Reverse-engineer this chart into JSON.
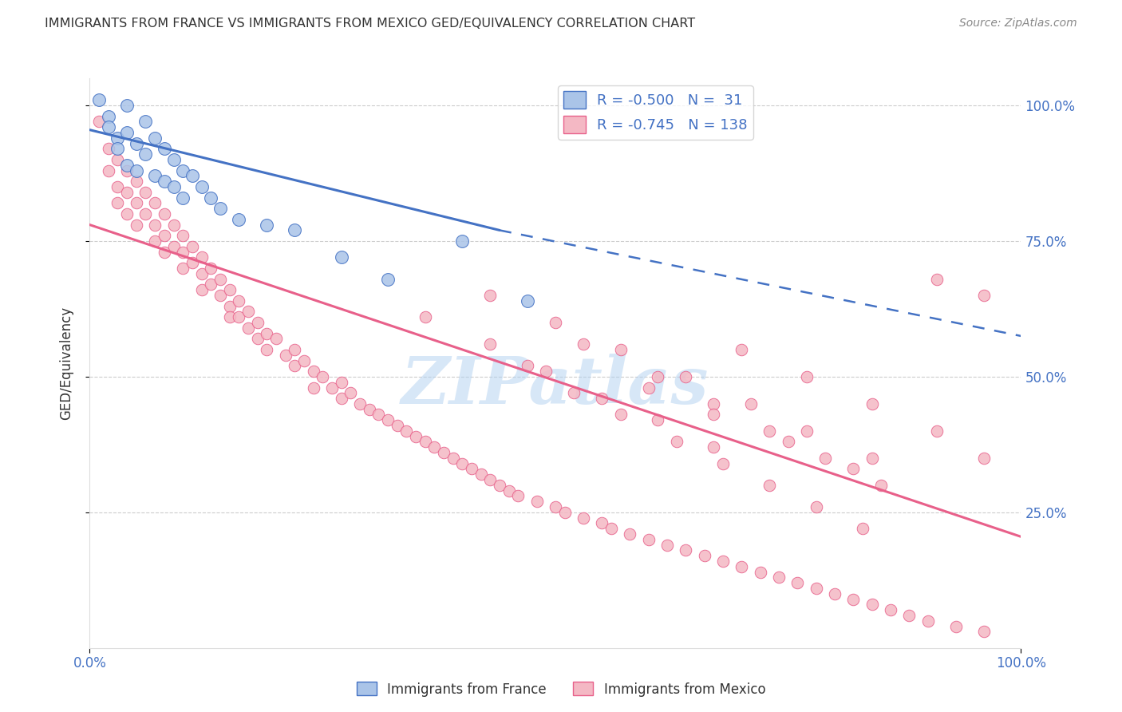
{
  "title": "IMMIGRANTS FROM FRANCE VS IMMIGRANTS FROM MEXICO GED/EQUIVALENCY CORRELATION CHART",
  "source": "Source: ZipAtlas.com",
  "ylabel": "GED/Equivalency",
  "xlim": [
    0.0,
    1.0
  ],
  "ylim": [
    0.0,
    1.05
  ],
  "ytick_positions": [
    0.25,
    0.5,
    0.75,
    1.0
  ],
  "ytick_labels": [
    "25.0%",
    "50.0%",
    "75.0%",
    "100.0%"
  ],
  "xtick_positions": [
    0.0,
    1.0
  ],
  "xtick_labels": [
    "0.0%",
    "100.0%"
  ],
  "france_R": -0.5,
  "france_N": 31,
  "mexico_R": -0.745,
  "mexico_N": 138,
  "legend_france_color": "#aac4e8",
  "legend_mexico_color": "#f4b8c4",
  "france_line_color": "#4472c4",
  "mexico_line_color": "#e8608a",
  "france_scatter_facecolor": "#aac4e8",
  "france_scatter_edgecolor": "#4472c4",
  "mexico_scatter_facecolor": "#f4b8c4",
  "mexico_scatter_edgecolor": "#e8608a",
  "watermark_text": "ZIPatlas",
  "watermark_color": "#b0d0f0",
  "background_color": "#ffffff",
  "grid_color": "#cccccc",
  "title_color": "#333333",
  "axis_label_color": "#4472c4",
  "france_line_x0": 0.0,
  "france_line_y0": 0.955,
  "france_line_solid_x1": 0.44,
  "france_line_solid_y1": 0.77,
  "france_line_dash_x2": 1.0,
  "france_line_dash_y2": 0.575,
  "mexico_line_x0": 0.0,
  "mexico_line_y0": 0.78,
  "mexico_line_x1": 1.0,
  "mexico_line_y1": 0.205,
  "france_x": [
    0.01,
    0.02,
    0.02,
    0.03,
    0.03,
    0.04,
    0.04,
    0.04,
    0.05,
    0.05,
    0.06,
    0.06,
    0.07,
    0.07,
    0.08,
    0.08,
    0.09,
    0.09,
    0.1,
    0.1,
    0.11,
    0.12,
    0.13,
    0.14,
    0.16,
    0.19,
    0.22,
    0.27,
    0.32,
    0.4,
    0.47
  ],
  "france_y": [
    1.01,
    0.98,
    0.96,
    0.94,
    0.92,
    1.0,
    0.95,
    0.89,
    0.93,
    0.88,
    0.97,
    0.91,
    0.94,
    0.87,
    0.92,
    0.86,
    0.9,
    0.85,
    0.88,
    0.83,
    0.87,
    0.85,
    0.83,
    0.81,
    0.79,
    0.78,
    0.77,
    0.72,
    0.68,
    0.75,
    0.64
  ],
  "mexico_x": [
    0.01,
    0.02,
    0.02,
    0.03,
    0.03,
    0.03,
    0.04,
    0.04,
    0.04,
    0.05,
    0.05,
    0.05,
    0.06,
    0.06,
    0.07,
    0.07,
    0.07,
    0.08,
    0.08,
    0.08,
    0.09,
    0.09,
    0.1,
    0.1,
    0.1,
    0.11,
    0.11,
    0.12,
    0.12,
    0.12,
    0.13,
    0.13,
    0.14,
    0.14,
    0.15,
    0.15,
    0.15,
    0.16,
    0.16,
    0.17,
    0.17,
    0.18,
    0.18,
    0.19,
    0.19,
    0.2,
    0.21,
    0.22,
    0.22,
    0.23,
    0.24,
    0.24,
    0.25,
    0.26,
    0.27,
    0.27,
    0.28,
    0.29,
    0.3,
    0.31,
    0.32,
    0.33,
    0.34,
    0.35,
    0.36,
    0.37,
    0.38,
    0.39,
    0.4,
    0.41,
    0.42,
    0.43,
    0.44,
    0.45,
    0.46,
    0.48,
    0.5,
    0.51,
    0.53,
    0.55,
    0.56,
    0.58,
    0.6,
    0.62,
    0.64,
    0.66,
    0.68,
    0.7,
    0.72,
    0.74,
    0.76,
    0.78,
    0.8,
    0.82,
    0.84,
    0.86,
    0.88,
    0.9,
    0.93,
    0.96,
    0.47,
    0.52,
    0.57,
    0.63,
    0.68,
    0.73,
    0.78,
    0.83,
    0.53,
    0.61,
    0.67,
    0.73,
    0.79,
    0.85,
    0.36,
    0.43,
    0.49,
    0.55,
    0.61,
    0.67,
    0.43,
    0.5,
    0.57,
    0.64,
    0.71,
    0.77,
    0.84,
    0.6,
    0.67,
    0.75,
    0.82,
    0.7,
    0.77,
    0.84,
    0.91,
    0.96,
    0.91,
    0.96
  ],
  "mexico_y": [
    0.97,
    0.92,
    0.88,
    0.9,
    0.85,
    0.82,
    0.88,
    0.84,
    0.8,
    0.86,
    0.82,
    0.78,
    0.84,
    0.8,
    0.82,
    0.78,
    0.75,
    0.8,
    0.76,
    0.73,
    0.78,
    0.74,
    0.76,
    0.73,
    0.7,
    0.74,
    0.71,
    0.72,
    0.69,
    0.66,
    0.7,
    0.67,
    0.68,
    0.65,
    0.66,
    0.63,
    0.61,
    0.64,
    0.61,
    0.62,
    0.59,
    0.6,
    0.57,
    0.58,
    0.55,
    0.57,
    0.54,
    0.55,
    0.52,
    0.53,
    0.51,
    0.48,
    0.5,
    0.48,
    0.46,
    0.49,
    0.47,
    0.45,
    0.44,
    0.43,
    0.42,
    0.41,
    0.4,
    0.39,
    0.38,
    0.37,
    0.36,
    0.35,
    0.34,
    0.33,
    0.32,
    0.31,
    0.3,
    0.29,
    0.28,
    0.27,
    0.26,
    0.25,
    0.24,
    0.23,
    0.22,
    0.21,
    0.2,
    0.19,
    0.18,
    0.17,
    0.16,
    0.15,
    0.14,
    0.13,
    0.12,
    0.11,
    0.1,
    0.09,
    0.08,
    0.07,
    0.06,
    0.05,
    0.04,
    0.03,
    0.52,
    0.47,
    0.43,
    0.38,
    0.34,
    0.3,
    0.26,
    0.22,
    0.56,
    0.5,
    0.45,
    0.4,
    0.35,
    0.3,
    0.61,
    0.56,
    0.51,
    0.46,
    0.42,
    0.37,
    0.65,
    0.6,
    0.55,
    0.5,
    0.45,
    0.4,
    0.35,
    0.48,
    0.43,
    0.38,
    0.33,
    0.55,
    0.5,
    0.45,
    0.4,
    0.35,
    0.68,
    0.65
  ]
}
